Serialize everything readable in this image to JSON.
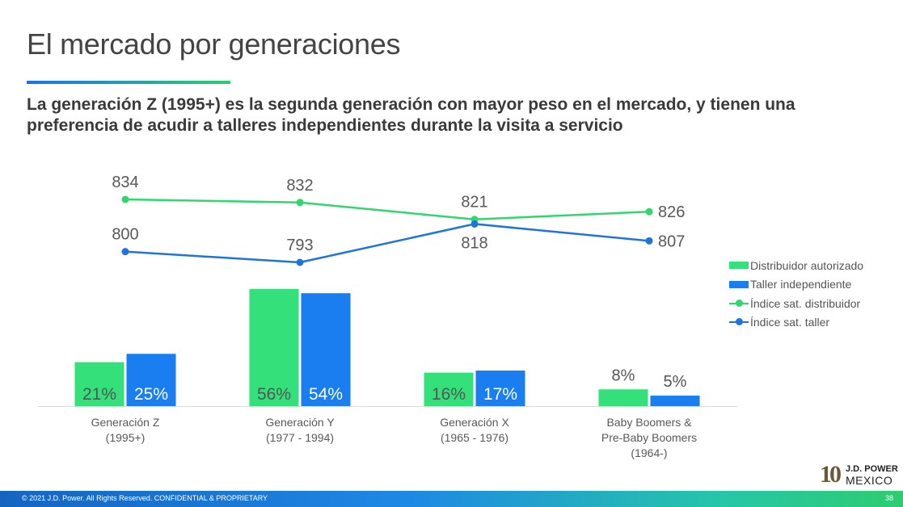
{
  "page": {
    "title": "El mercado por generaciones",
    "subtitle": "La generación Z (1995+) es la segunda generación con mayor peso en el mercado, y  tienen una preferencia de acudir a talleres independientes durante la visita a servicio"
  },
  "footer": {
    "copyright": "© 2021 J.D. Power. All Rights Reserved. CONFIDENTIAL & PROPRIETARY",
    "page_number": "38"
  },
  "logo": {
    "number": "10",
    "brand": "J.D. POWER",
    "country": "MEXICO"
  },
  "colors": {
    "green": "#33e07a",
    "blue": "#1a7ef0",
    "line_green": "#2fd76e",
    "line_blue": "#1f74dc"
  },
  "chart_data": {
    "type": "bar",
    "categories": [
      [
        "Generación Z",
        "(1995+)"
      ],
      [
        "Generación Y",
        "(1977 - 1994)"
      ],
      [
        "Generación X",
        "(1965 - 1976)"
      ],
      [
        "Baby Boomers &",
        "Pre-Baby Boomers",
        "(1964-)"
      ]
    ],
    "series": [
      {
        "name": "Distribuidor autorizado",
        "kind": "bar",
        "values": [
          21,
          56,
          16,
          8
        ],
        "labels": [
          "21%",
          "56%",
          "16%",
          "8%"
        ]
      },
      {
        "name": "Taller independiente",
        "kind": "bar",
        "values": [
          25,
          54,
          17,
          5
        ],
        "labels": [
          "25%",
          "54%",
          "17%",
          "5%"
        ]
      },
      {
        "name": "Índice sat. distribuidor",
        "kind": "line",
        "values": [
          834,
          832,
          821,
          826
        ],
        "labels": [
          "834",
          "832",
          "821",
          "826"
        ]
      },
      {
        "name": "Índice sat. taller",
        "kind": "line",
        "values": [
          800,
          793,
          818,
          807
        ],
        "labels": [
          "800",
          "793",
          "818",
          "807"
        ]
      }
    ],
    "bar_ylim": [
      0,
      60
    ],
    "line_ylim": [
      760,
      845
    ],
    "legend_position": "right"
  }
}
